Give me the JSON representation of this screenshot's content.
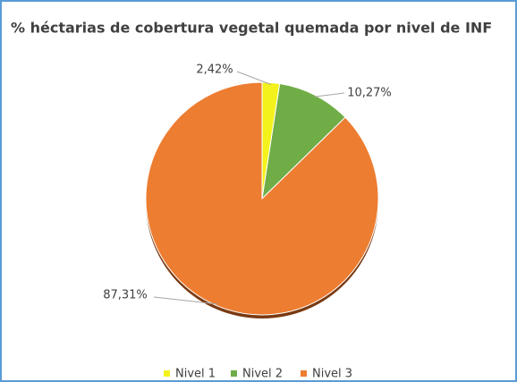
{
  "chart_data": {
    "type": "pie",
    "title": "% héctarias de cobertura vegetal quemada por nivel de INF",
    "categories": [
      "Nivel 1",
      "Nivel 2",
      "Nivel 3"
    ],
    "values": [
      2.42,
      10.27,
      87.31
    ],
    "value_labels": [
      "2,42%",
      "10,27%",
      "87,31%"
    ],
    "colors": [
      "#f4f21c",
      "#70ad47",
      "#ed7d31"
    ],
    "legend": "bottom"
  }
}
